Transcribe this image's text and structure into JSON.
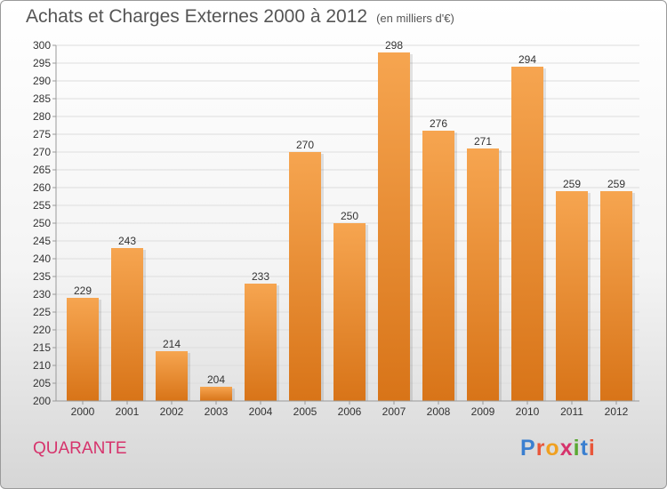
{
  "title": "Achats et Charges Externes 2000 à 2012",
  "subtitle": "(en milliers d'€)",
  "town": "QUARANTE",
  "logo": {
    "text": "Proxiti",
    "letters": [
      {
        "char": "P",
        "color": "#3a7fd0"
      },
      {
        "char": "r",
        "color": "#e8563a"
      },
      {
        "char": "o",
        "color": "#f0a020"
      },
      {
        "char": "x",
        "color": "#d6336c"
      },
      {
        "char": "i",
        "color": "#5aa832"
      },
      {
        "char": "t",
        "color": "#3a7fd0"
      },
      {
        "char": "i",
        "color": "#e8563a"
      }
    ]
  },
  "colors": {
    "bar_top": "#f6a550",
    "bar_bottom": "#d87418",
    "grid": "#dddddd",
    "axis": "#999999"
  },
  "chart_data": {
    "type": "bar",
    "title": "Achats et Charges Externes 2000 à 2012",
    "subtitle": "(en milliers d'€)",
    "categories": [
      "2000",
      "2001",
      "2002",
      "2003",
      "2004",
      "2005",
      "2006",
      "2007",
      "2008",
      "2009",
      "2010",
      "2011",
      "2012"
    ],
    "values": [
      229,
      243,
      214,
      204,
      233,
      270,
      250,
      298,
      276,
      271,
      294,
      259,
      259
    ],
    "ylim": [
      200,
      300
    ],
    "ytick_step": 5,
    "grid": true,
    "xlabel": "",
    "ylabel": ""
  }
}
